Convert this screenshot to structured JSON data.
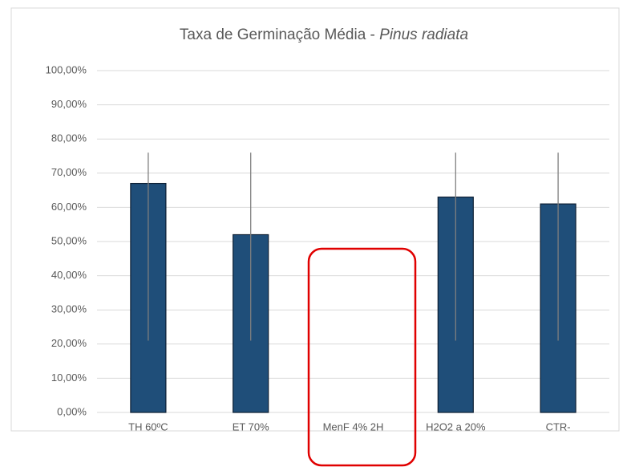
{
  "chart_data": {
    "type": "bar",
    "title_parts": [
      "Taxa de Germinação Média - ",
      "Pinus radiata"
    ],
    "categories": [
      "TH 60ºC",
      "ET 70%",
      "MenF 4% 2H",
      "H2O2 a 20%",
      "CTR-"
    ],
    "values": [
      67,
      52,
      0,
      63,
      61
    ],
    "error_plus": [
      9,
      24,
      null,
      13,
      15
    ],
    "error_minus": [
      46,
      31,
      null,
      42,
      40
    ],
    "color": "#1f4e79",
    "ylim": [
      0,
      100
    ],
    "yticks": [
      {
        "value": 0,
        "label": "0,00%"
      },
      {
        "value": 10,
        "label": "10,00%"
      },
      {
        "value": 20,
        "label": "20,00%"
      },
      {
        "value": 30,
        "label": "30,00%"
      },
      {
        "value": 40,
        "label": "40,00%"
      },
      {
        "value": 50,
        "label": "50,00%"
      },
      {
        "value": 60,
        "label": "60,00%"
      },
      {
        "value": 70,
        "label": "70,00%"
      },
      {
        "value": 80,
        "label": "80,00%"
      },
      {
        "value": 90,
        "label": "90,00%"
      },
      {
        "value": 100,
        "label": "100,00%"
      }
    ],
    "grid": true
  }
}
